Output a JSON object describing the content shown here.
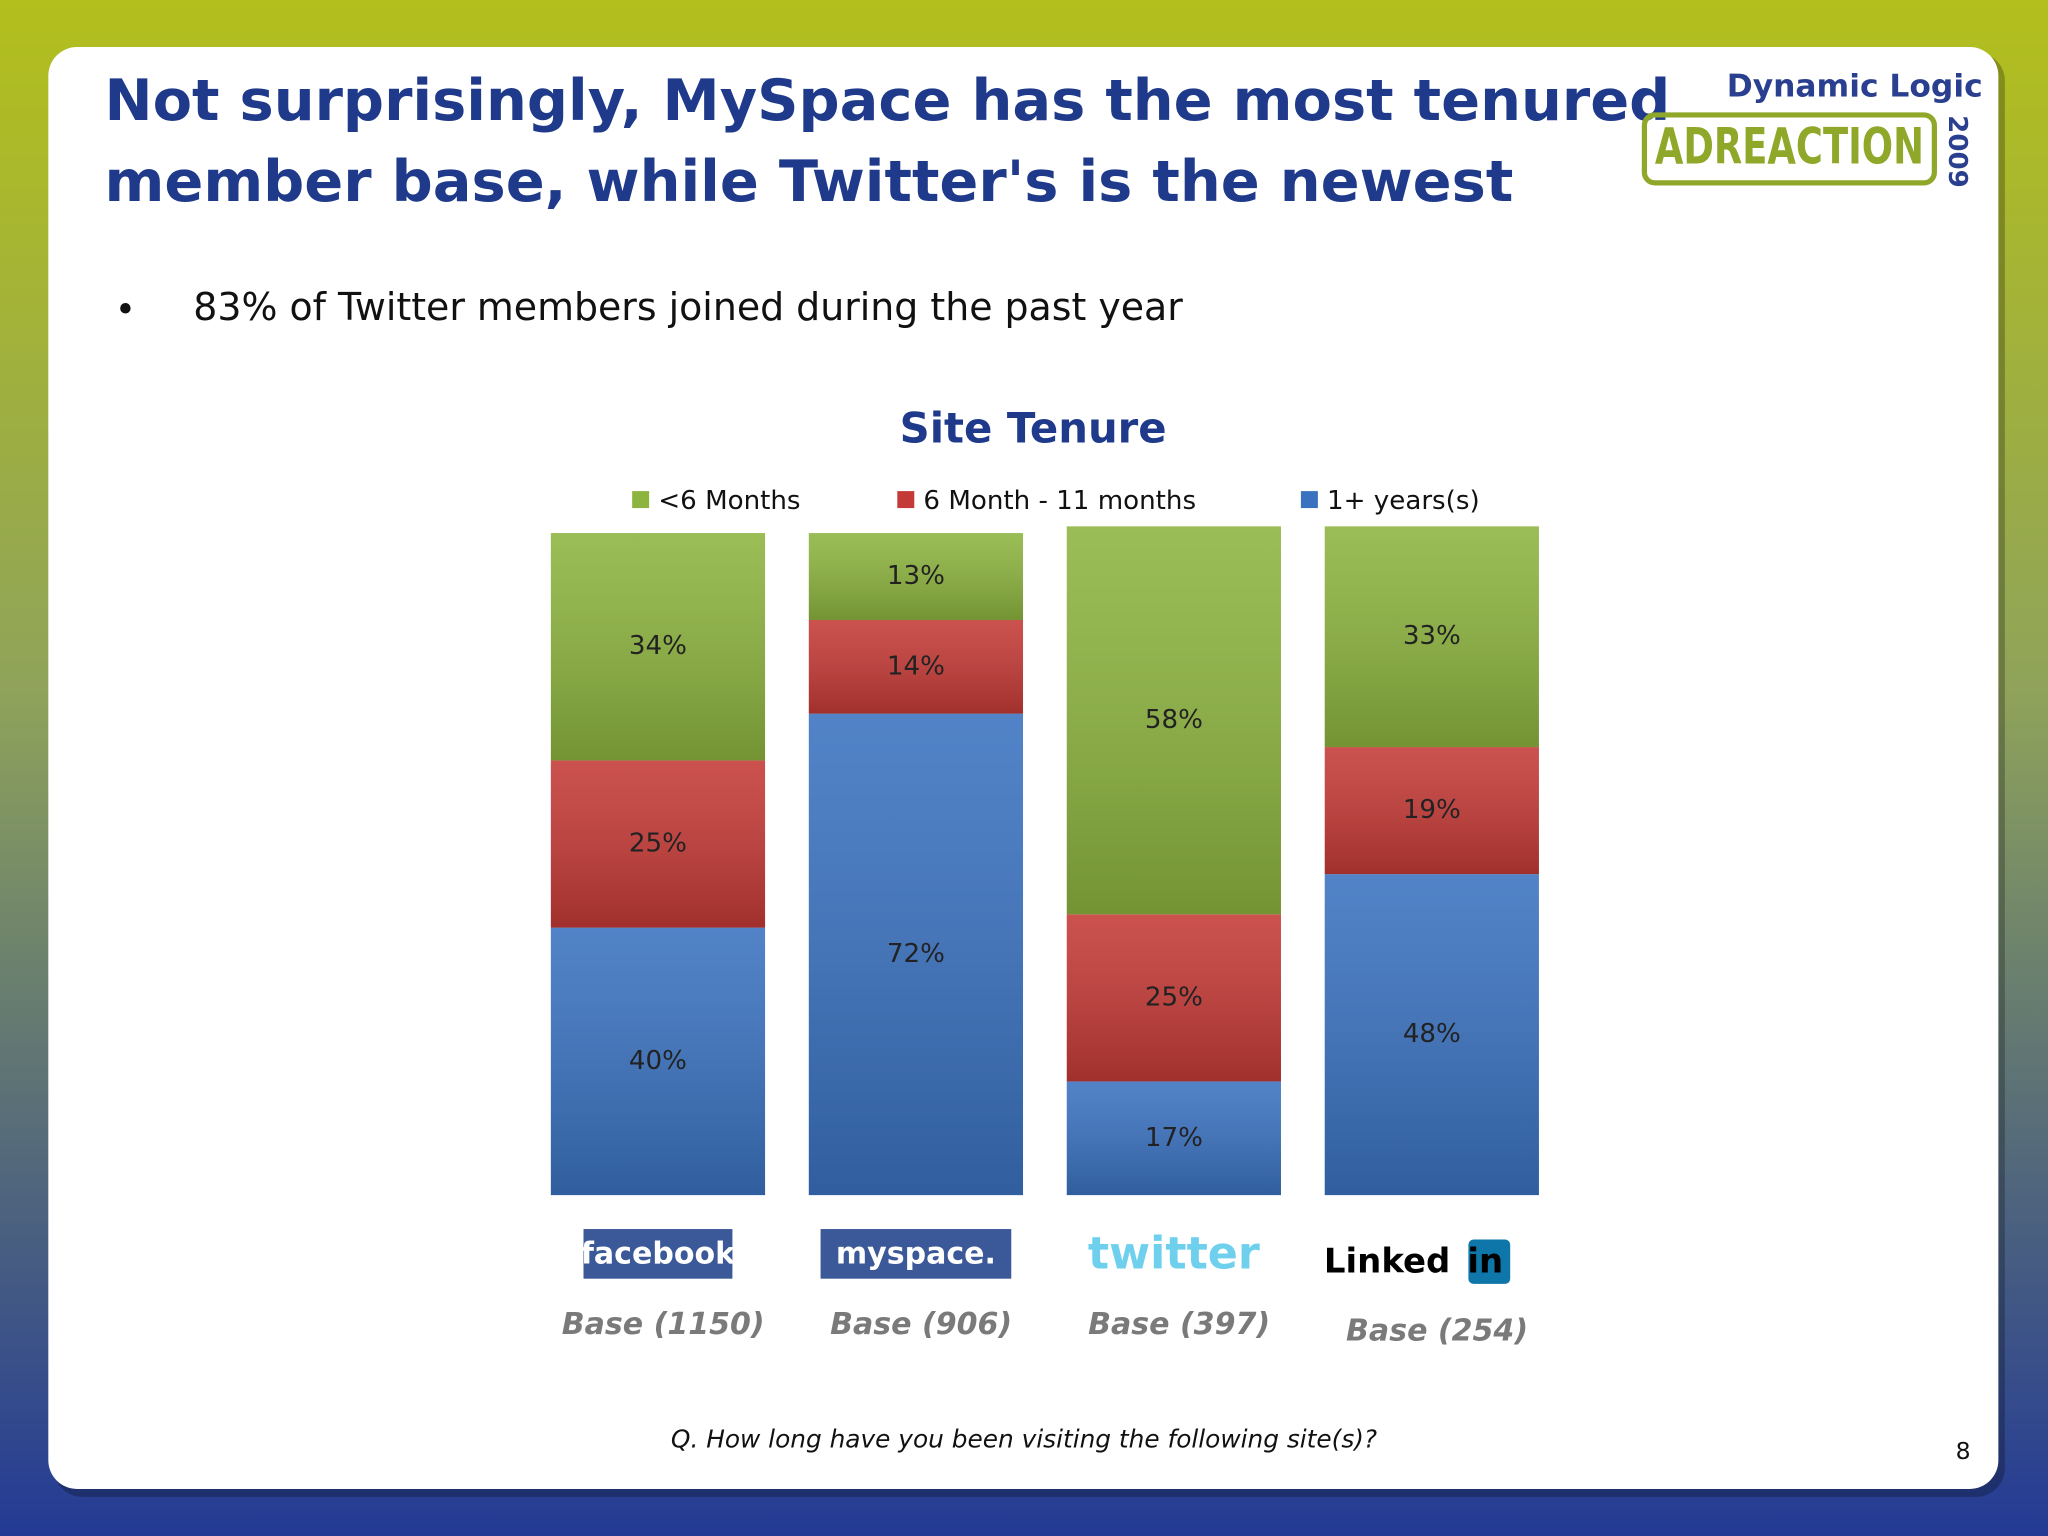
{
  "slide": {
    "title_lines": [
      "Not surprisingly, MySpace has the most tenured",
      "member base, while Twitter's is the newest"
    ],
    "bullet": "83% of Twitter members joined during the past year",
    "logo_top": "Dynamic Logic",
    "logo_main": "ADREACTION",
    "logo_year": "2009",
    "footnote": "Q. How long have you been visiting the following site(s)?",
    "page_number": "8"
  },
  "chart_data": {
    "type": "stacked_bar",
    "title": "Site Tenure",
    "categories": [
      "facebook",
      "myspace.",
      "twitter",
      "Linked in"
    ],
    "bases": [
      "Base (1150)",
      "Base (906)",
      "Base (397)",
      "Base (254)"
    ],
    "ylim": [
      0,
      100
    ],
    "series": [
      {
        "name": "<6 Months",
        "color": "#8db43f",
        "values": [
          34,
          13,
          58,
          33
        ],
        "value_labels": [
          "34%",
          "13%",
          "58%",
          "33%"
        ]
      },
      {
        "name": "6 Month  - 11 months",
        "color": "#c43a36",
        "values": [
          25,
          14,
          25,
          19
        ],
        "value_labels": [
          "25%",
          "14%",
          "25%",
          "19%"
        ]
      },
      {
        "name": "1+ years(s)",
        "color": "#3a72c0",
        "values": [
          40,
          72,
          17,
          48
        ],
        "value_labels": [
          "40%",
          "72%",
          "17%",
          "48%"
        ]
      }
    ],
    "stack_order": "bottom_up_reversed",
    "legend": "top"
  }
}
